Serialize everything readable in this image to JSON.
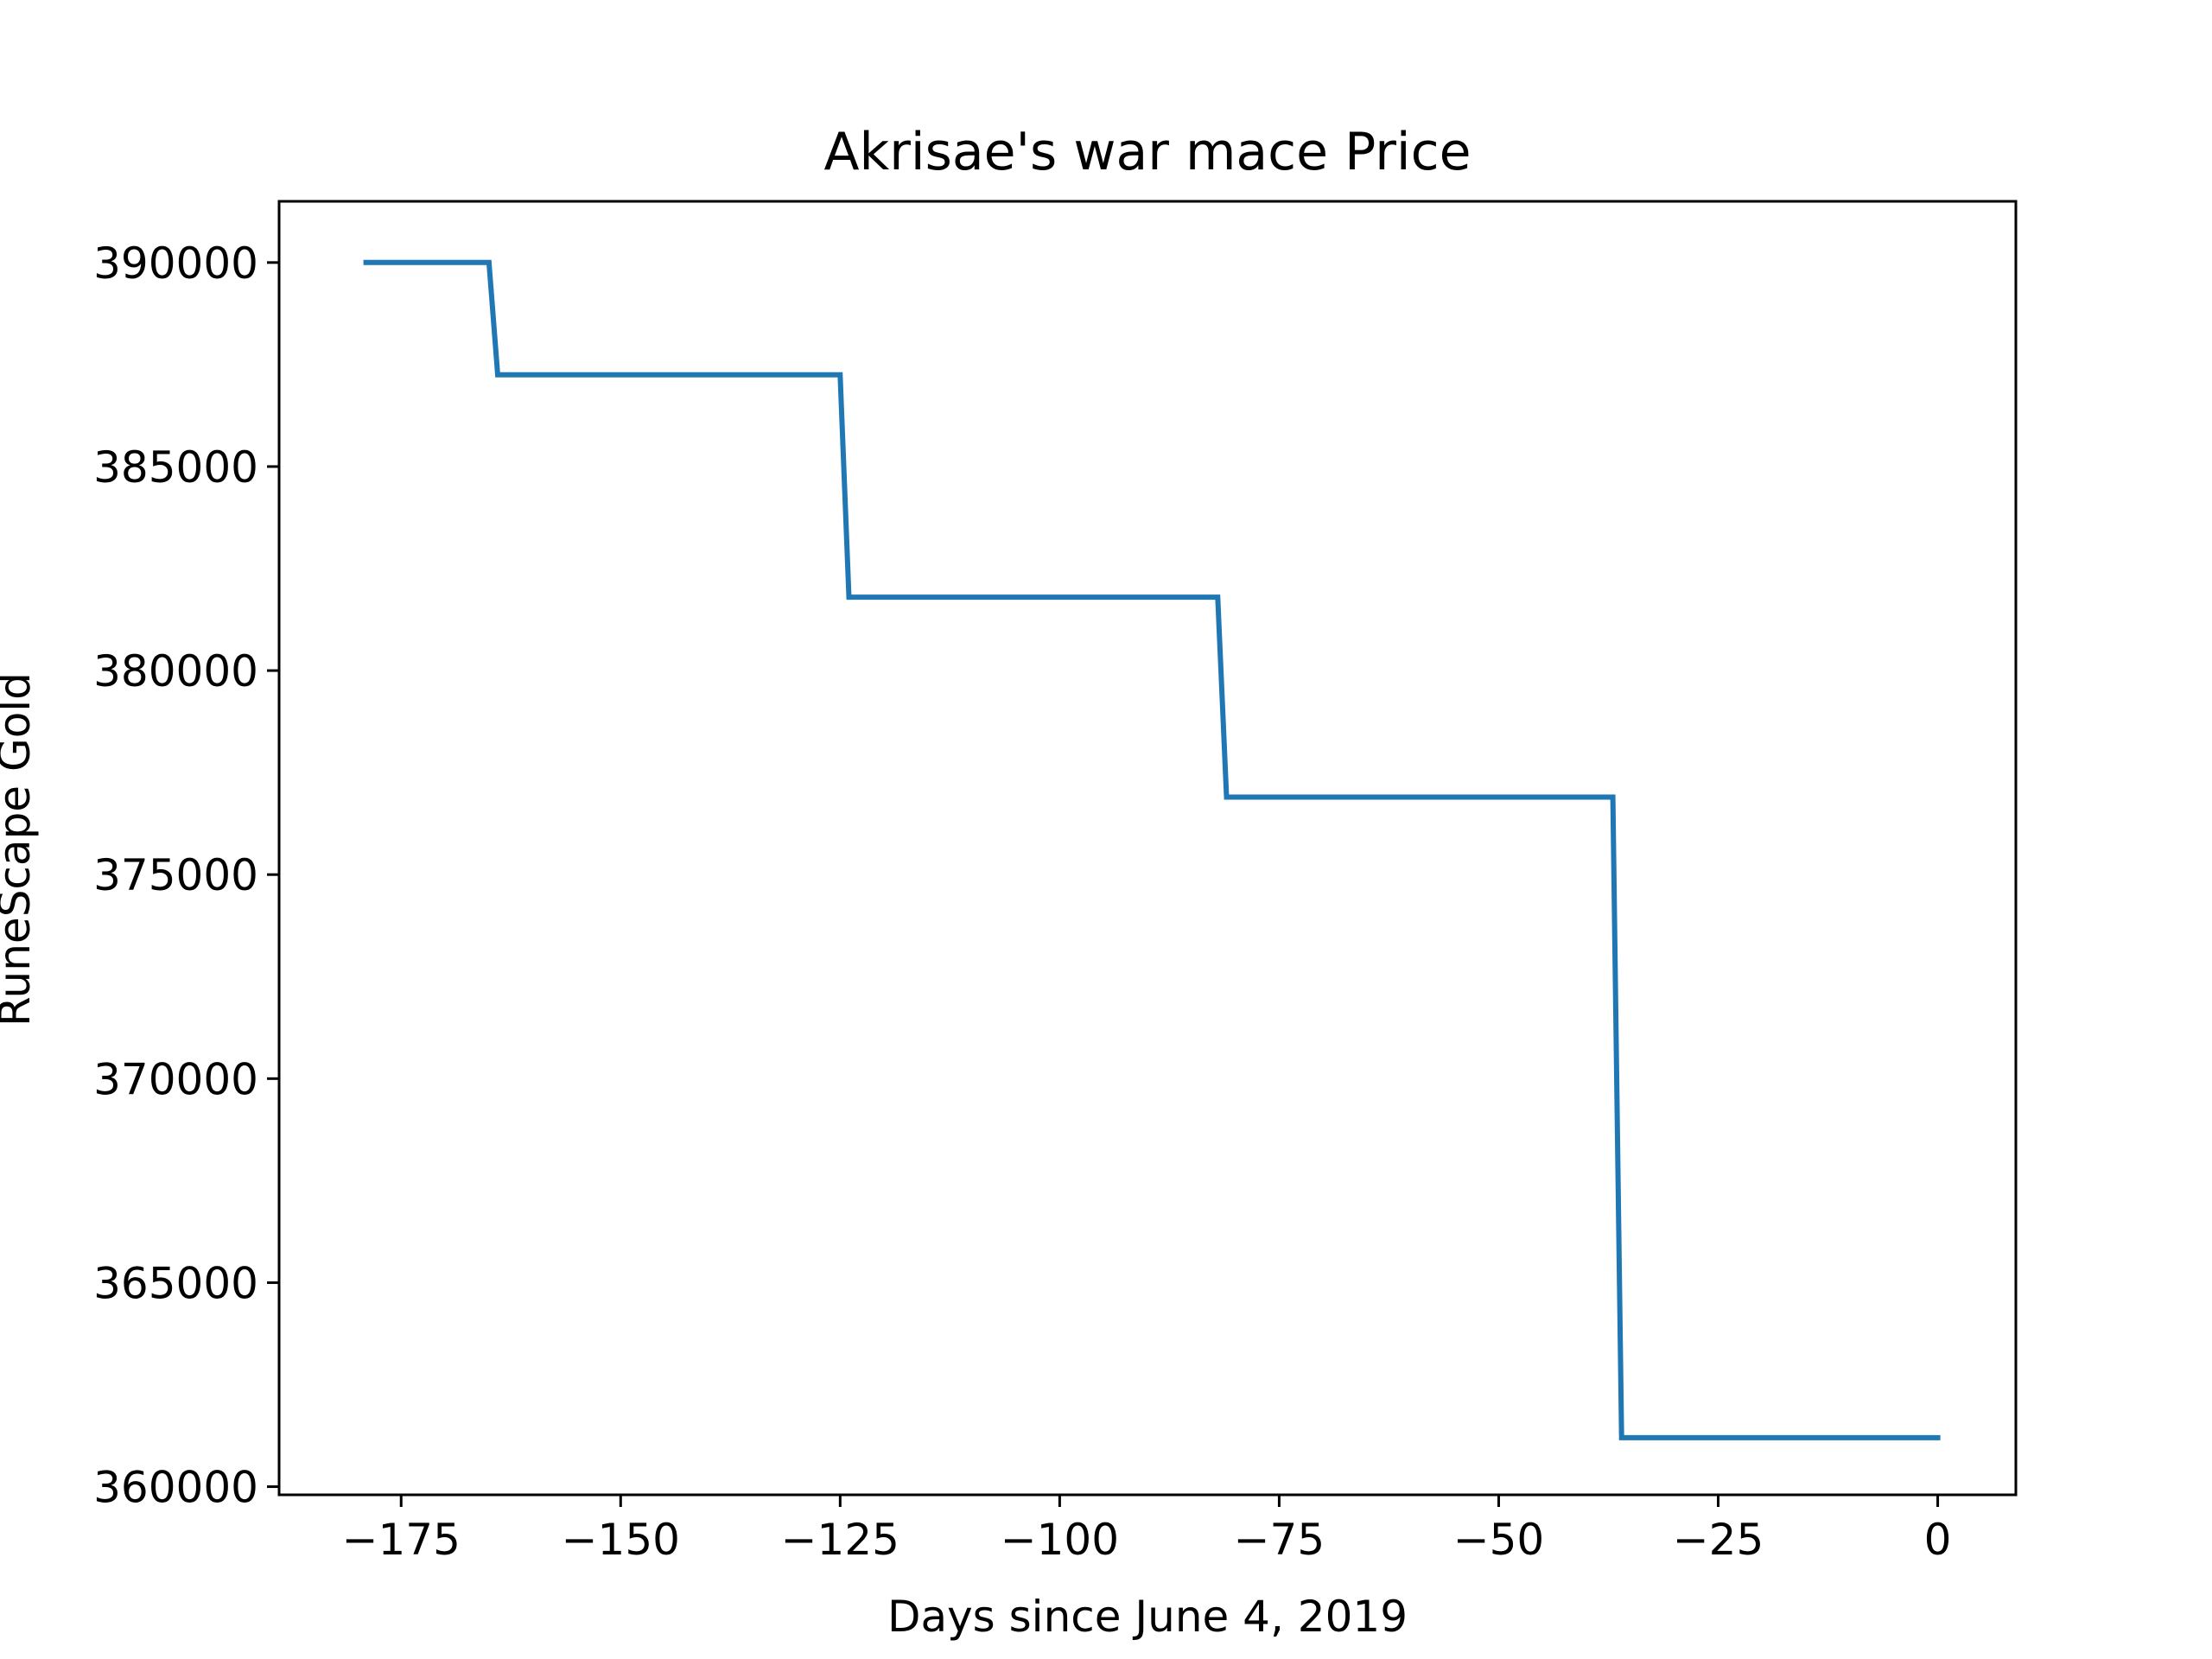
{
  "chart_data": {
    "type": "line",
    "title": "Akrisae's war mace Price",
    "xlabel": "Days since June 4, 2019",
    "ylabel": "RuneScape Gold",
    "xlim": [
      -188.9,
      8.9
    ],
    "ylim": [
      359800,
      391500
    ],
    "xticks": [
      -175,
      -150,
      -125,
      -100,
      -75,
      -50,
      -25,
      0
    ],
    "xtick_labels": [
      "−175",
      "−150",
      "−125",
      "−100",
      "−75",
      "−50",
      "−25",
      "0"
    ],
    "yticks": [
      360000,
      365000,
      370000,
      375000,
      380000,
      385000,
      390000
    ],
    "ytick_labels": [
      "360000",
      "365000",
      "370000",
      "375000",
      "380000",
      "385000",
      "390000"
    ],
    "grid": false,
    "legend": "none",
    "series": [
      {
        "color": "#1f77b4",
        "x": [
          -179,
          -165,
          -164,
          -125,
          -124,
          -82,
          -81,
          -37,
          -36,
          0
        ],
        "y": [
          390000,
          390000,
          387250,
          387250,
          381800,
          381800,
          376900,
          376900,
          361200,
          361200
        ]
      }
    ]
  }
}
